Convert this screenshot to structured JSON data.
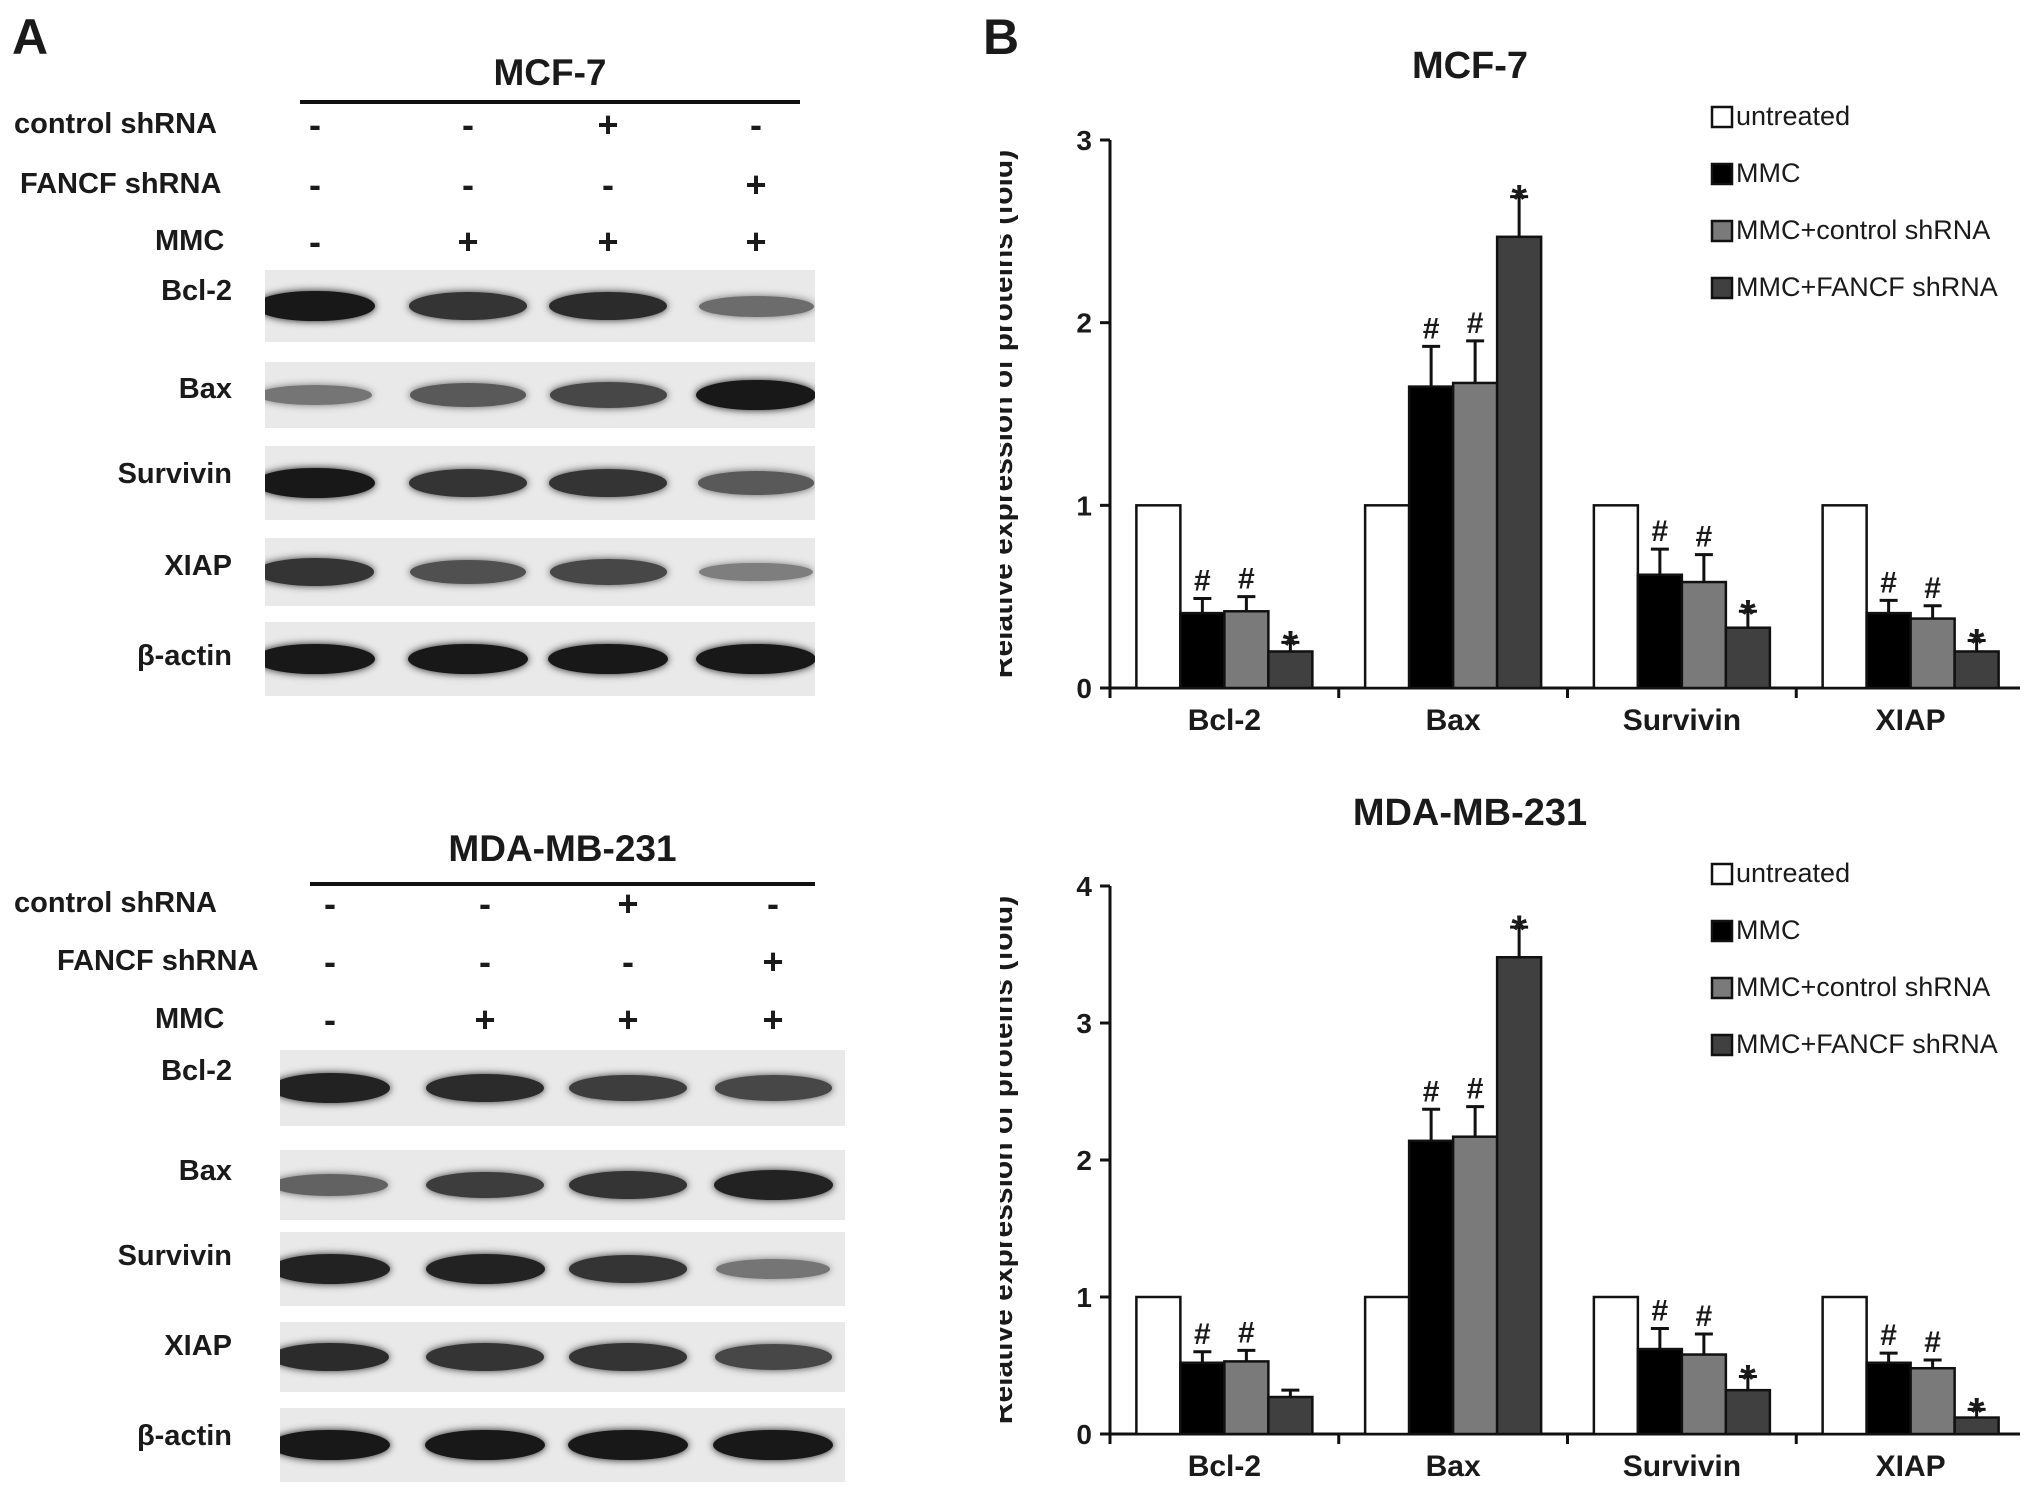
{
  "panel_a": {
    "letter": "A"
  },
  "panel_b": {
    "letter": "B"
  },
  "blots": [
    {
      "title": "MCF-7",
      "conditions": [
        {
          "label": "control shRNA",
          "signs": [
            "-",
            "-",
            "+",
            "-"
          ]
        },
        {
          "label": "FANCF shRNA",
          "signs": [
            "-",
            "-",
            "-",
            "+"
          ]
        },
        {
          "label": "MMC",
          "signs": [
            "-",
            "+",
            "+",
            "+"
          ]
        }
      ],
      "proteins": [
        {
          "name": "Bcl-2",
          "intensity": [
            0.95,
            0.8,
            0.85,
            0.5
          ]
        },
        {
          "name": "Bax",
          "intensity": [
            0.45,
            0.6,
            0.7,
            0.95
          ]
        },
        {
          "name": "Survivin",
          "intensity": [
            0.95,
            0.8,
            0.8,
            0.6
          ]
        },
        {
          "name": "XIAP",
          "intensity": [
            0.8,
            0.65,
            0.7,
            0.4
          ]
        },
        {
          "name": "β-actin",
          "intensity": [
            0.95,
            0.95,
            0.95,
            0.95
          ]
        }
      ]
    },
    {
      "title": "MDA-MB-231",
      "conditions": [
        {
          "label": "control shRNA",
          "signs": [
            "-",
            "-",
            "+",
            "-"
          ]
        },
        {
          "label": "FANCF shRNA",
          "signs": [
            "-",
            "-",
            "-",
            "+"
          ]
        },
        {
          "label": "MMC",
          "signs": [
            "-",
            "+",
            "+",
            "+"
          ]
        }
      ],
      "proteins": [
        {
          "name": "Bcl-2",
          "intensity": [
            0.9,
            0.85,
            0.75,
            0.7
          ]
        },
        {
          "name": "Bax",
          "intensity": [
            0.55,
            0.75,
            0.8,
            0.9
          ]
        },
        {
          "name": "Survivin",
          "intensity": [
            0.9,
            0.9,
            0.8,
            0.45
          ]
        },
        {
          "name": "XIAP",
          "intensity": [
            0.85,
            0.8,
            0.8,
            0.7
          ]
        },
        {
          "name": "β-actin",
          "intensity": [
            0.95,
            0.95,
            0.95,
            0.95
          ]
        }
      ]
    }
  ],
  "colors": {
    "untreated": "#ffffff",
    "MMC": "#000000",
    "MMC+control shRNA": "#7a7a7a",
    "MMC+FANCF shRNA": "#404040"
  },
  "chart_data": [
    {
      "type": "bar",
      "title": "MCF-7",
      "ylabel": "Relative expression of proteins (fold)",
      "xlabel": "",
      "categories": [
        "Bcl-2",
        "Bax",
        "Survivin",
        "XIAP"
      ],
      "ylim": [
        0,
        3
      ],
      "yticks": [
        "0",
        "1",
        "2",
        "3"
      ],
      "legend_position": "top-right",
      "series": [
        {
          "name": "untreated",
          "values": [
            1.0,
            1.0,
            1.0,
            1.0
          ],
          "errors": [
            0,
            0,
            0,
            0
          ],
          "marks": [
            "",
            "",
            "",
            ""
          ]
        },
        {
          "name": "MMC",
          "values": [
            0.41,
            1.65,
            0.62,
            0.41
          ],
          "errors": [
            0.08,
            0.22,
            0.14,
            0.07
          ],
          "marks": [
            "#",
            "#",
            "#",
            "#"
          ]
        },
        {
          "name": "MMC+control shRNA",
          "values": [
            0.42,
            1.67,
            0.58,
            0.38
          ],
          "errors": [
            0.08,
            0.23,
            0.15,
            0.07
          ],
          "marks": [
            "#",
            "#",
            "#",
            "#"
          ]
        },
        {
          "name": "MMC+FANCF shRNA",
          "values": [
            0.2,
            2.47,
            0.33,
            0.2
          ],
          "errors": [
            0.05,
            0.22,
            0.09,
            0.06
          ],
          "marks": [
            "*",
            "*",
            "*",
            "*"
          ]
        }
      ]
    },
    {
      "type": "bar",
      "title": "MDA-MB-231",
      "ylabel": "Relative expression of proteins (fold)",
      "xlabel": "",
      "categories": [
        "Bcl-2",
        "Bax",
        "Survivin",
        "XIAP"
      ],
      "ylim": [
        0,
        4
      ],
      "yticks": [
        "0",
        "1",
        "2",
        "3",
        "4"
      ],
      "legend_position": "top-right",
      "series": [
        {
          "name": "untreated",
          "values": [
            1.0,
            1.0,
            1.0,
            1.0
          ],
          "errors": [
            0,
            0,
            0,
            0
          ],
          "marks": [
            "",
            "",
            "",
            ""
          ]
        },
        {
          "name": "MMC",
          "values": [
            0.52,
            2.14,
            0.62,
            0.52
          ],
          "errors": [
            0.08,
            0.23,
            0.15,
            0.07
          ],
          "marks": [
            "#",
            "#",
            "#",
            "#"
          ]
        },
        {
          "name": "MMC+control shRNA",
          "values": [
            0.53,
            2.17,
            0.58,
            0.48
          ],
          "errors": [
            0.08,
            0.22,
            0.15,
            0.06
          ],
          "marks": [
            "#",
            "#",
            "#",
            "#"
          ]
        },
        {
          "name": "MMC+FANCF shRNA",
          "values": [
            0.27,
            3.48,
            0.32,
            0.12
          ],
          "errors": [
            0.05,
            0.22,
            0.1,
            0.06
          ],
          "marks": [
            "",
            "*",
            "*",
            "*"
          ]
        }
      ]
    }
  ]
}
